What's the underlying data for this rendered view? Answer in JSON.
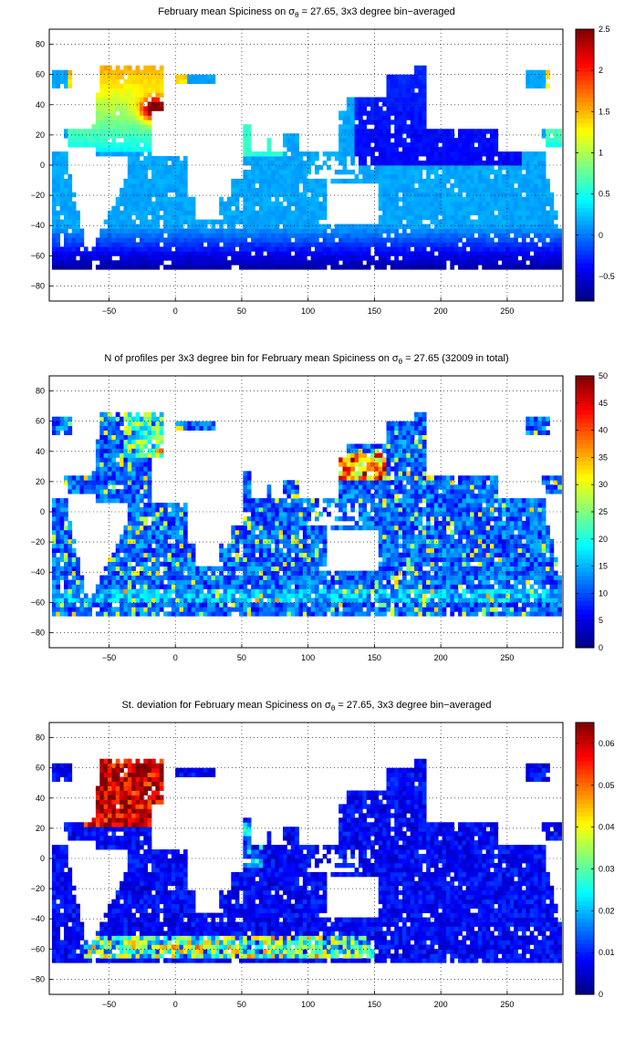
{
  "chart_data": [
    {
      "type": "heatmap",
      "title_prefix": "February mean Spiciness on σ",
      "title_sub": "θ",
      "title_suffix": " = 27.65, 3x3 degree bin−averaged",
      "xlim": [
        -95,
        292
      ],
      "ylim": [
        -90,
        90
      ],
      "xticks": [
        -50,
        0,
        50,
        100,
        150,
        200,
        250
      ],
      "yticks": [
        80,
        60,
        40,
        20,
        0,
        -20,
        -40,
        -60,
        -80
      ],
      "colorbar": {
        "colormap": "jet",
        "min": -0.8,
        "max": 2.5,
        "ticks": [
          -0.5,
          0,
          0.5,
          1,
          1.5,
          2,
          2.5
        ]
      },
      "grid": true
    },
    {
      "type": "heatmap",
      "title_prefix": "N of profiles per 3x3 degree bin for February mean Spiciness on σ",
      "title_sub": "θ",
      "title_suffix": " = 27.65 (32009 in total)",
      "xlim": [
        -95,
        292
      ],
      "ylim": [
        -90,
        90
      ],
      "xticks": [
        -50,
        0,
        50,
        100,
        150,
        200,
        250
      ],
      "yticks": [
        80,
        60,
        40,
        20,
        0,
        -20,
        -40,
        -60,
        -80
      ],
      "colorbar": {
        "colormap": "jet",
        "min": 0,
        "max": 50,
        "ticks": [
          0,
          5,
          10,
          15,
          20,
          25,
          30,
          35,
          40,
          45,
          50
        ]
      },
      "grid": true
    },
    {
      "type": "heatmap",
      "title_prefix": "St. deviation for February mean Spiciness on σ",
      "title_sub": "θ",
      "title_suffix": " = 27.65, 3x3 degree bin−averaged",
      "xlim": [
        -95,
        292
      ],
      "ylim": [
        -90,
        90
      ],
      "xticks": [
        -50,
        0,
        50,
        100,
        150,
        200,
        250
      ],
      "yticks": [
        80,
        60,
        40,
        20,
        0,
        -20,
        -40,
        -60,
        -80
      ],
      "colorbar": {
        "colormap": "jet",
        "min": 0,
        "max": 0.065,
        "ticks": [
          0,
          0.01,
          0.02,
          0.03,
          0.04,
          0.05,
          0.06
        ]
      },
      "grid": true
    }
  ]
}
